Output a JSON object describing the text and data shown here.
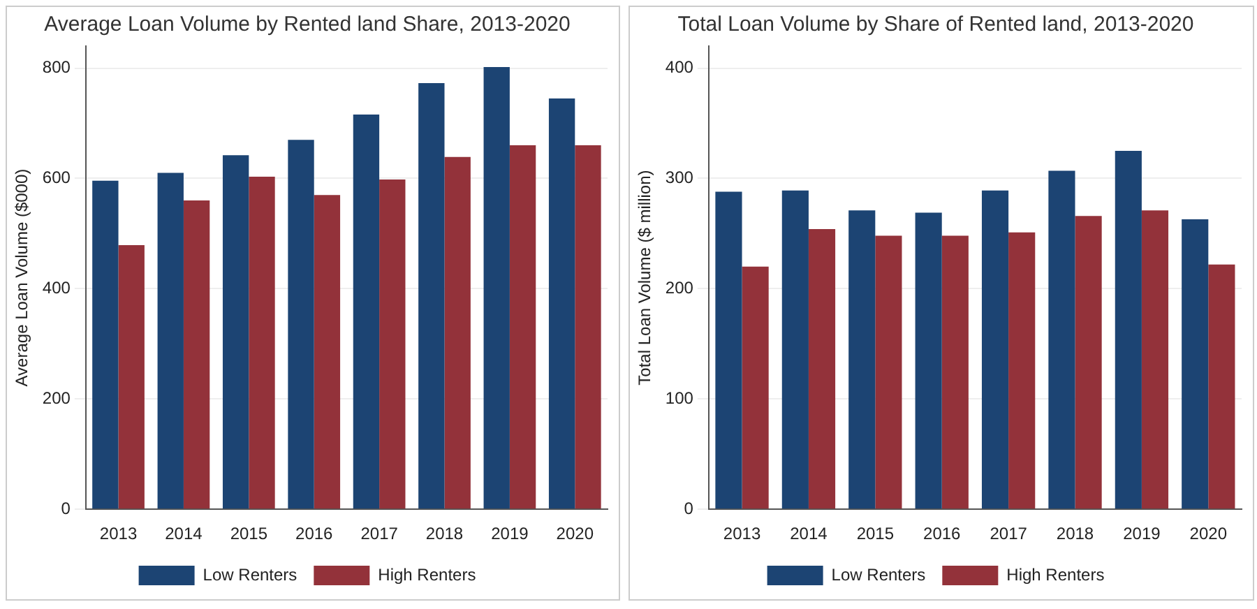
{
  "chart_data": [
    {
      "type": "bar",
      "title": "Average Loan Volume by Rented land Share, 2013-2020",
      "ylabel": "Average Loan Volume ($000)",
      "categories": [
        "2013",
        "2014",
        "2015",
        "2016",
        "2017",
        "2018",
        "2019",
        "2020"
      ],
      "series": [
        {
          "name": "Low Renters",
          "color": "#1c4473",
          "values": [
            596,
            610,
            642,
            670,
            716,
            773,
            802,
            745
          ]
        },
        {
          "name": "High Renters",
          "color": "#93323a",
          "values": [
            479,
            560,
            603,
            570,
            598,
            639,
            660,
            660
          ]
        }
      ],
      "ylim": [
        0,
        840
      ],
      "yticks": [
        0,
        200,
        400,
        600,
        800
      ],
      "grid": "y",
      "legend": "bottom"
    },
    {
      "type": "bar",
      "title": "Total Loan Volume by Share of Rented land, 2013-2020",
      "ylabel": "Total Loan Volume ($ million)",
      "categories": [
        "2013",
        "2014",
        "2015",
        "2016",
        "2017",
        "2018",
        "2019",
        "2020"
      ],
      "series": [
        {
          "name": "Low Renters",
          "color": "#1c4473",
          "values": [
            288,
            289,
            271,
            269,
            289,
            307,
            325,
            263
          ]
        },
        {
          "name": "High Renters",
          "color": "#93323a",
          "values": [
            220,
            254,
            248,
            248,
            251,
            266,
            271,
            222
          ]
        }
      ],
      "ylim": [
        0,
        420
      ],
      "yticks": [
        0,
        100,
        200,
        300,
        400
      ],
      "grid": "y",
      "legend": "bottom"
    }
  ]
}
